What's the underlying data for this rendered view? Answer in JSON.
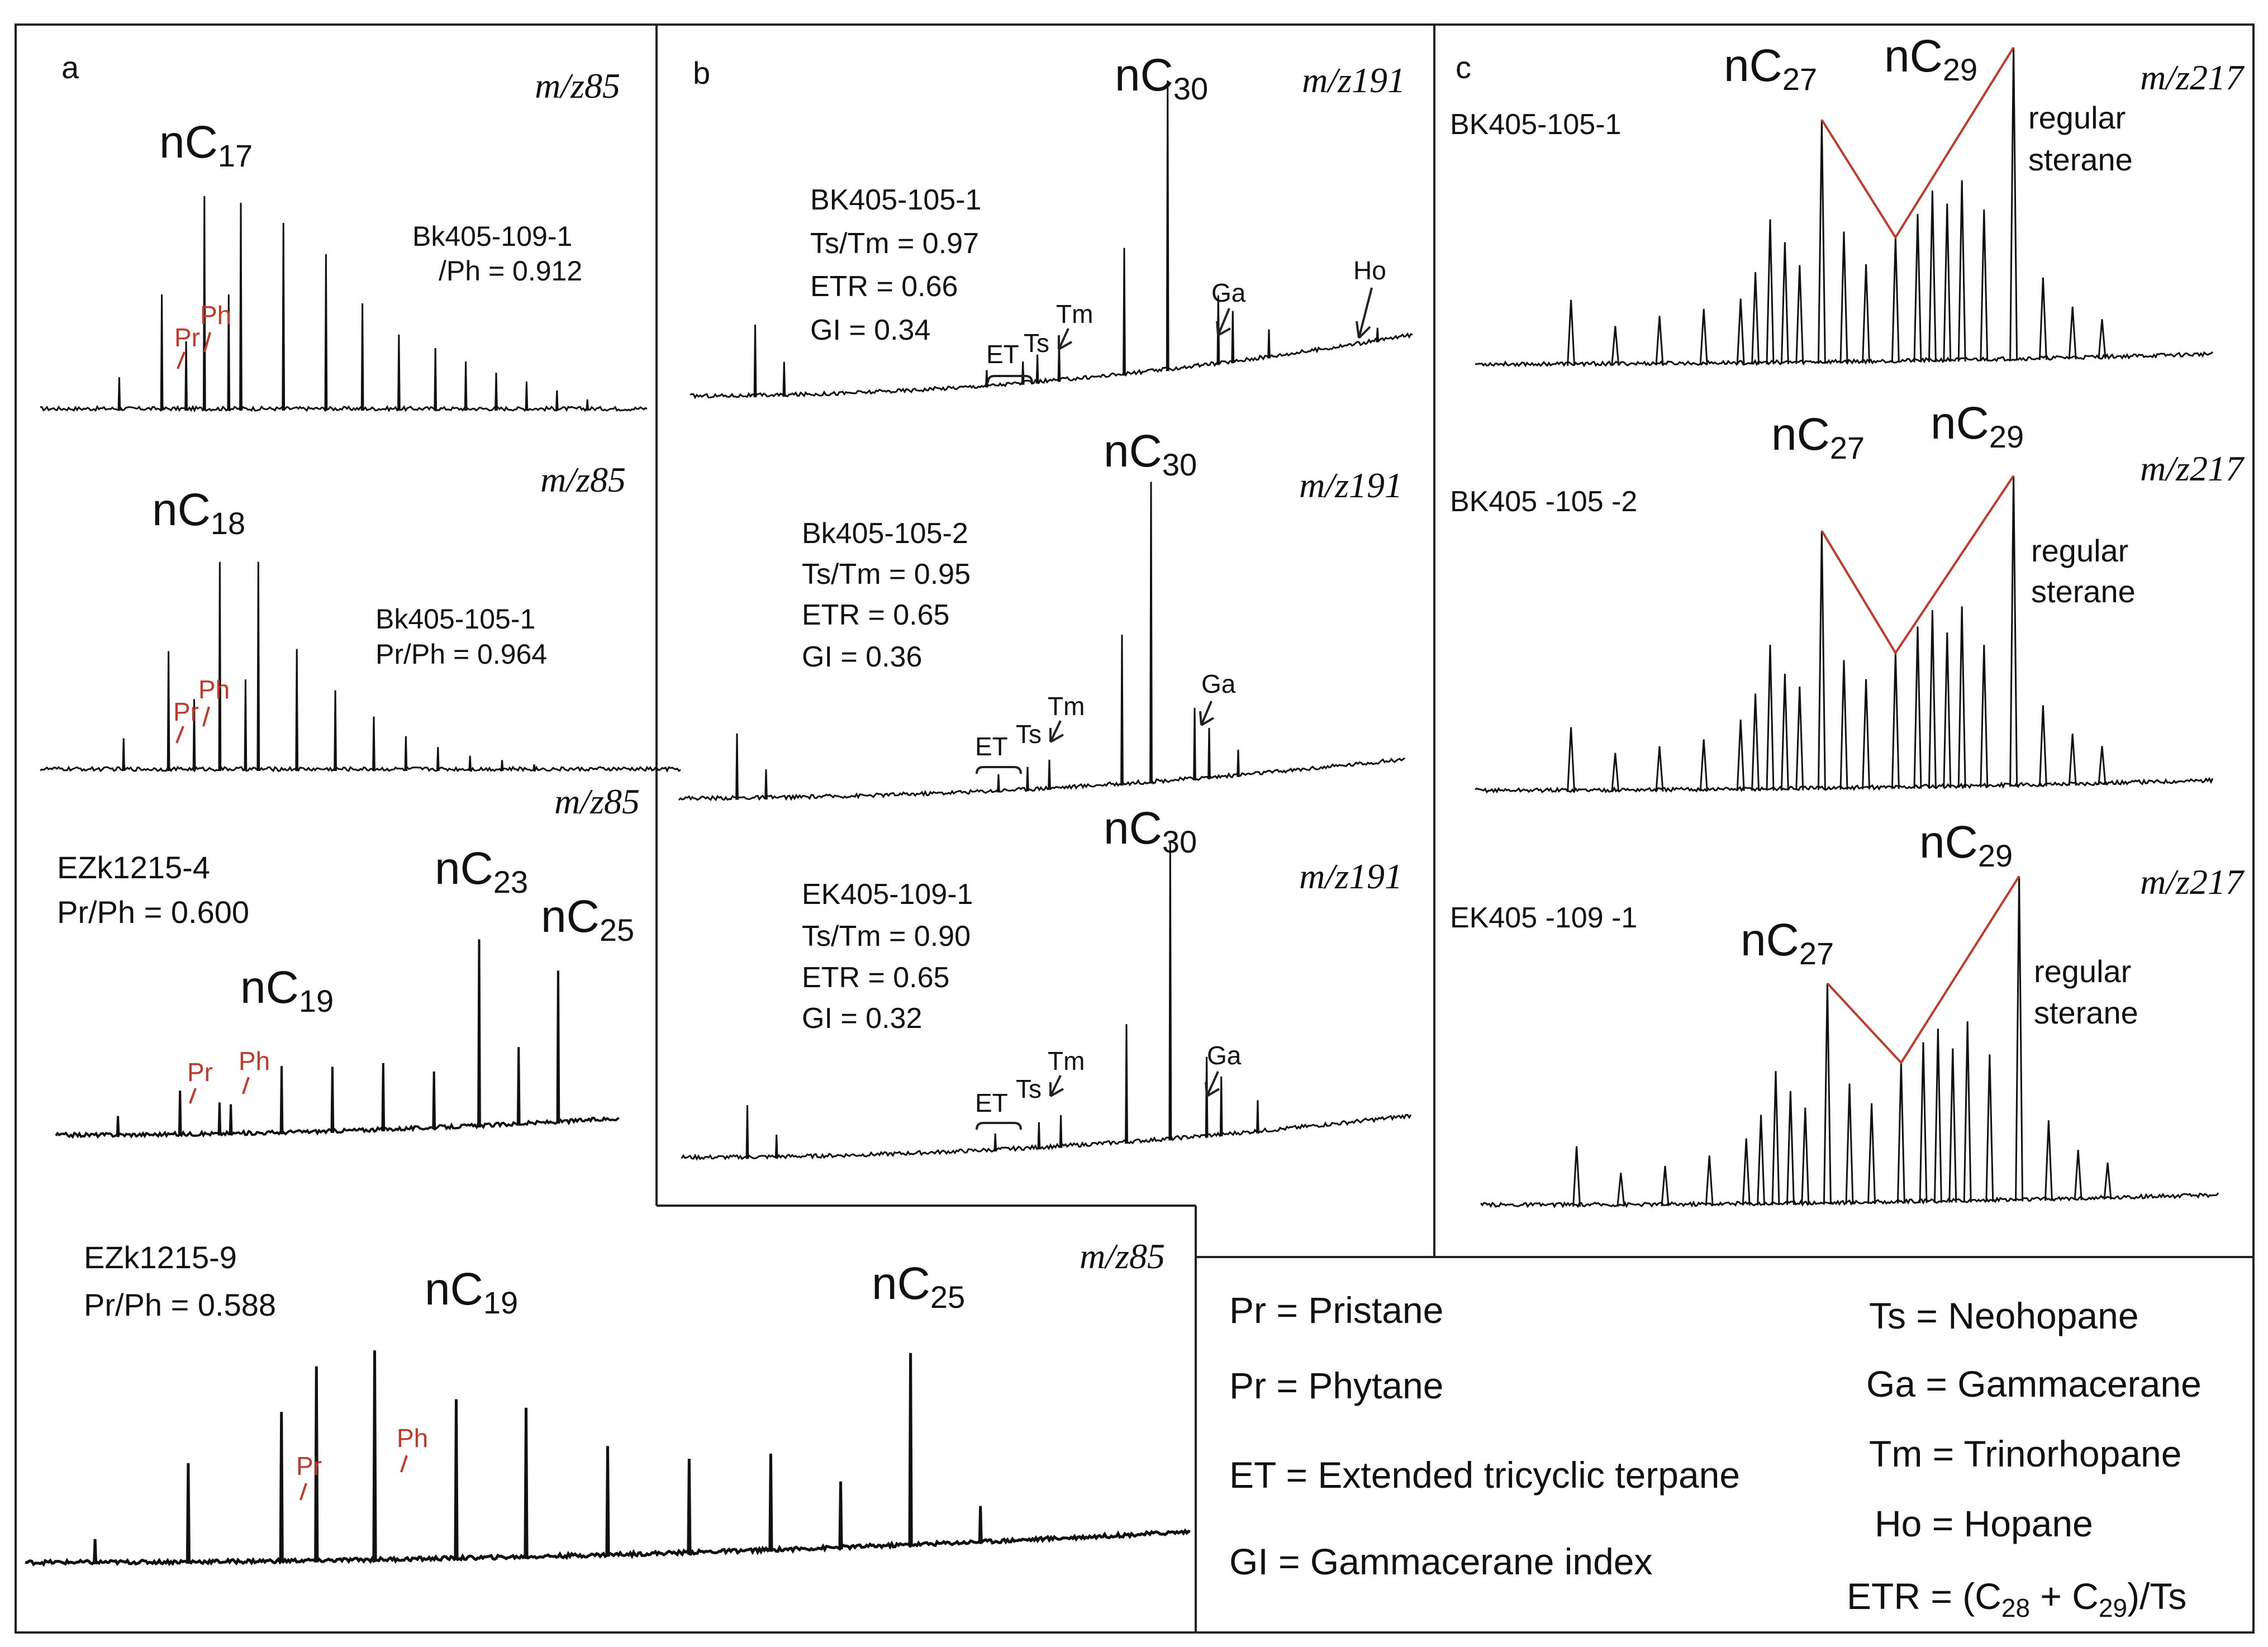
{
  "figure": {
    "legend": {
      "items": [
        "Pr = Pristane",
        "Pr = Phytane",
        "ET = Extended tricyclic terpane",
        "GI = Gammacerane index",
        "Ts = Neohopane",
        "Ga = Gammacerane",
        "Tm = Trinorhopane",
        "Ho = Hopane"
      ],
      "etr_formula": {
        "prefix": "ETR = (C",
        "s1": "28",
        "mid": " + C",
        "s2": "29",
        "suffix": ")/Ts"
      }
    }
  },
  "chart_data": [
    {
      "id": "a1",
      "panel_letter": "a",
      "type": "line",
      "mz": "m/z85",
      "sample": "Bk405-109-1",
      "stats": [
        "/Ph = 0.912"
      ],
      "peak_labels": [
        {
          "text": "nC",
          "sub": "17"
        }
      ],
      "compound_markers": [
        "Pr",
        "Ph"
      ],
      "peaks": [
        {
          "rt": 0.13,
          "h": 0.15
        },
        {
          "rt": 0.2,
          "h": 0.52
        },
        {
          "rt": 0.24,
          "h": 0.31
        },
        {
          "rt": 0.27,
          "h": 0.96
        },
        {
          "rt": 0.31,
          "h": 0.52
        },
        {
          "rt": 0.33,
          "h": 0.93
        },
        {
          "rt": 0.4,
          "h": 0.84
        },
        {
          "rt": 0.47,
          "h": 0.7
        },
        {
          "rt": 0.53,
          "h": 0.48
        },
        {
          "rt": 0.59,
          "h": 0.34
        },
        {
          "rt": 0.65,
          "h": 0.28
        },
        {
          "rt": 0.7,
          "h": 0.22
        },
        {
          "rt": 0.75,
          "h": 0.17
        },
        {
          "rt": 0.8,
          "h": 0.13
        },
        {
          "rt": 0.85,
          "h": 0.09
        },
        {
          "rt": 0.9,
          "h": 0.05
        }
      ]
    },
    {
      "id": "a2",
      "panel_letter": "",
      "type": "line",
      "mz": "m/z85",
      "sample": "Bk405-105-1",
      "stats": [
        "Pr/Ph = 0.964"
      ],
      "peak_labels": [
        {
          "text": "nC",
          "sub": "18"
        }
      ],
      "compound_markers": [
        "Pr",
        "Ph"
      ],
      "peaks": [
        {
          "rt": 0.13,
          "h": 0.15
        },
        {
          "rt": 0.2,
          "h": 0.55
        },
        {
          "rt": 0.24,
          "h": 0.33
        },
        {
          "rt": 0.28,
          "h": 0.96
        },
        {
          "rt": 0.32,
          "h": 0.42
        },
        {
          "rt": 0.34,
          "h": 0.96
        },
        {
          "rt": 0.4,
          "h": 0.56
        },
        {
          "rt": 0.46,
          "h": 0.37
        },
        {
          "rt": 0.52,
          "h": 0.25
        },
        {
          "rt": 0.57,
          "h": 0.16
        },
        {
          "rt": 0.62,
          "h": 0.11
        },
        {
          "rt": 0.67,
          "h": 0.07
        },
        {
          "rt": 0.72,
          "h": 0.05
        },
        {
          "rt": 0.77,
          "h": 0.03
        }
      ]
    },
    {
      "id": "a3",
      "panel_letter": "",
      "type": "line",
      "mz": "m/z85",
      "sample": "EZk1215-4",
      "stats": [
        "Pr/Ph = 0.600"
      ],
      "peak_labels": [
        {
          "text": "nC",
          "sub": "23"
        },
        {
          "text": "nC",
          "sub": "25"
        },
        {
          "text": "nC",
          "sub": "19"
        }
      ],
      "compound_markers": [
        "Pr",
        "Ph"
      ],
      "peaks": [
        {
          "rt": 0.11,
          "h": 0.1
        },
        {
          "rt": 0.22,
          "h": 0.22
        },
        {
          "rt": 0.29,
          "h": 0.16
        },
        {
          "rt": 0.31,
          "h": 0.15
        },
        {
          "rt": 0.4,
          "h": 0.33
        },
        {
          "rt": 0.49,
          "h": 0.32
        },
        {
          "rt": 0.58,
          "h": 0.33
        },
        {
          "rt": 0.67,
          "h": 0.28
        },
        {
          "rt": 0.75,
          "h": 0.91
        },
        {
          "rt": 0.82,
          "h": 0.38
        },
        {
          "rt": 0.89,
          "h": 0.74
        }
      ]
    },
    {
      "id": "a4",
      "panel_letter": "",
      "type": "line",
      "mz": "m/z85",
      "sample": "EZk1215-9",
      "stats": [
        "Pr/Ph = 0.588"
      ],
      "peak_labels": [
        {
          "text": "nC",
          "sub": "19"
        },
        {
          "text": "nC",
          "sub": "25"
        }
      ],
      "compound_markers": [
        "Pr",
        "Ph"
      ],
      "peaks": [
        {
          "rt": 0.06,
          "h": 0.1
        },
        {
          "rt": 0.14,
          "h": 0.4
        },
        {
          "rt": 0.22,
          "h": 0.6
        },
        {
          "rt": 0.25,
          "h": 0.78
        },
        {
          "rt": 0.3,
          "h": 0.84
        },
        {
          "rt": 0.37,
          "h": 0.64
        },
        {
          "rt": 0.43,
          "h": 0.6
        },
        {
          "rt": 0.5,
          "h": 0.44
        },
        {
          "rt": 0.57,
          "h": 0.38
        },
        {
          "rt": 0.64,
          "h": 0.39
        },
        {
          "rt": 0.7,
          "h": 0.27
        },
        {
          "rt": 0.76,
          "h": 0.77
        },
        {
          "rt": 0.82,
          "h": 0.15
        }
      ]
    },
    {
      "id": "b1",
      "panel_letter": "b",
      "type": "line",
      "mz": "m/z191",
      "sample": "BK405-105-1",
      "stats": [
        "Ts/Tm = 0.97",
        "ETR = 0.66",
        "GI = 0.34"
      ],
      "peak_labels": [
        {
          "text": "nC",
          "sub": "30"
        }
      ],
      "compound_markers": [
        "ET",
        "Ts",
        "Tm",
        "Ga",
        "Ho"
      ],
      "peaks": [
        {
          "rt": 0.09,
          "h": 0.25
        },
        {
          "rt": 0.13,
          "h": 0.12
        },
        {
          "rt": 0.41,
          "h": 0.06
        },
        {
          "rt": 0.46,
          "h": 0.08
        },
        {
          "rt": 0.48,
          "h": 0.1
        },
        {
          "rt": 0.51,
          "h": 0.13
        },
        {
          "rt": 0.6,
          "h": 0.44
        },
        {
          "rt": 0.66,
          "h": 1.0
        },
        {
          "rt": 0.73,
          "h": 0.24
        },
        {
          "rt": 0.75,
          "h": 0.18
        },
        {
          "rt": 0.8,
          "h": 0.1
        },
        {
          "rt": 0.95,
          "h": 0.05
        }
      ]
    },
    {
      "id": "b2",
      "panel_letter": "",
      "type": "line",
      "mz": "m/z191",
      "sample": "Bk405-105-2",
      "stats": [
        "Ts/Tm = 0.95",
        "ETR = 0.65",
        "GI = 0.36"
      ],
      "peak_labels": [
        {
          "text": "nC",
          "sub": "30"
        }
      ],
      "compound_markers": [
        "ET",
        "Ts",
        "Tm",
        "Ga"
      ],
      "peaks": [
        {
          "rt": 0.08,
          "h": 0.22
        },
        {
          "rt": 0.12,
          "h": 0.1
        },
        {
          "rt": 0.44,
          "h": 0.06
        },
        {
          "rt": 0.48,
          "h": 0.08
        },
        {
          "rt": 0.51,
          "h": 0.1
        },
        {
          "rt": 0.61,
          "h": 0.5
        },
        {
          "rt": 0.65,
          "h": 1.0
        },
        {
          "rt": 0.71,
          "h": 0.24
        },
        {
          "rt": 0.73,
          "h": 0.17
        },
        {
          "rt": 0.77,
          "h": 0.09
        }
      ]
    },
    {
      "id": "b3",
      "panel_letter": "",
      "type": "line",
      "mz": "m/z191",
      "sample": "EK405-109-1",
      "stats": [
        "Ts/Tm = 0.90",
        "ETR = 0.65",
        "GI = 0.32"
      ],
      "peak_labels": [
        {
          "text": "nC",
          "sub": "30"
        }
      ],
      "compound_markers": [
        "ET",
        "Ts",
        "Tm",
        "Ga"
      ],
      "peaks": [
        {
          "rt": 0.09,
          "h": 0.18
        },
        {
          "rt": 0.13,
          "h": 0.08
        },
        {
          "rt": 0.43,
          "h": 0.06
        },
        {
          "rt": 0.49,
          "h": 0.09
        },
        {
          "rt": 0.52,
          "h": 0.11
        },
        {
          "rt": 0.61,
          "h": 0.4
        },
        {
          "rt": 0.67,
          "h": 1.0
        },
        {
          "rt": 0.72,
          "h": 0.27
        },
        {
          "rt": 0.74,
          "h": 0.2
        },
        {
          "rt": 0.79,
          "h": 0.11
        }
      ]
    },
    {
      "id": "c1",
      "panel_letter": "c",
      "type": "line",
      "mz": "m/z217",
      "sample": "BK405-105-1",
      "stats": [],
      "peak_labels": [
        {
          "text": "nC",
          "sub": "27"
        },
        {
          "text": "nC",
          "sub": "29"
        }
      ],
      "annotation": [
        "regular",
        "sterane"
      ],
      "peaks": [
        {
          "rt": 0.13,
          "h": 0.2
        },
        {
          "rt": 0.19,
          "h": 0.12
        },
        {
          "rt": 0.25,
          "h": 0.15
        },
        {
          "rt": 0.31,
          "h": 0.17
        },
        {
          "rt": 0.36,
          "h": 0.2
        },
        {
          "rt": 0.38,
          "h": 0.28
        },
        {
          "rt": 0.4,
          "h": 0.44
        },
        {
          "rt": 0.42,
          "h": 0.37
        },
        {
          "rt": 0.44,
          "h": 0.3
        },
        {
          "rt": 0.47,
          "h": 0.74
        },
        {
          "rt": 0.5,
          "h": 0.4
        },
        {
          "rt": 0.53,
          "h": 0.3
        },
        {
          "rt": 0.57,
          "h": 0.38
        },
        {
          "rt": 0.6,
          "h": 0.45
        },
        {
          "rt": 0.62,
          "h": 0.52
        },
        {
          "rt": 0.64,
          "h": 0.48
        },
        {
          "rt": 0.66,
          "h": 0.55
        },
        {
          "rt": 0.69,
          "h": 0.46
        },
        {
          "rt": 0.73,
          "h": 0.95
        },
        {
          "rt": 0.77,
          "h": 0.25
        },
        {
          "rt": 0.81,
          "h": 0.16
        },
        {
          "rt": 0.85,
          "h": 0.12
        }
      ]
    },
    {
      "id": "c2",
      "panel_letter": "",
      "type": "line",
      "mz": "m/z217",
      "sample": "BK405 -105 -2",
      "stats": [],
      "peak_labels": [
        {
          "text": "nC",
          "sub": "27"
        },
        {
          "text": "nC",
          "sub": "29"
        }
      ],
      "annotation": [
        "regular",
        "sterane"
      ],
      "peaks": [
        {
          "rt": 0.13,
          "h": 0.2
        },
        {
          "rt": 0.19,
          "h": 0.12
        },
        {
          "rt": 0.25,
          "h": 0.14
        },
        {
          "rt": 0.31,
          "h": 0.16
        },
        {
          "rt": 0.36,
          "h": 0.22
        },
        {
          "rt": 0.38,
          "h": 0.3
        },
        {
          "rt": 0.4,
          "h": 0.45
        },
        {
          "rt": 0.42,
          "h": 0.36
        },
        {
          "rt": 0.44,
          "h": 0.32
        },
        {
          "rt": 0.47,
          "h": 0.8
        },
        {
          "rt": 0.5,
          "h": 0.4
        },
        {
          "rt": 0.53,
          "h": 0.34
        },
        {
          "rt": 0.57,
          "h": 0.42
        },
        {
          "rt": 0.6,
          "h": 0.5
        },
        {
          "rt": 0.62,
          "h": 0.55
        },
        {
          "rt": 0.64,
          "h": 0.48
        },
        {
          "rt": 0.66,
          "h": 0.56
        },
        {
          "rt": 0.69,
          "h": 0.44
        },
        {
          "rt": 0.73,
          "h": 0.96
        },
        {
          "rt": 0.77,
          "h": 0.25
        },
        {
          "rt": 0.81,
          "h": 0.16
        },
        {
          "rt": 0.85,
          "h": 0.12
        }
      ]
    },
    {
      "id": "c3",
      "panel_letter": "",
      "type": "line",
      "mz": "m/z217",
      "sample": "EK405 -109 -1",
      "stats": [],
      "peak_labels": [
        {
          "text": "nC",
          "sub": "29"
        },
        {
          "text": "nC",
          "sub": "27"
        }
      ],
      "annotation": [
        "regular",
        "sterane"
      ],
      "peaks": [
        {
          "rt": 0.13,
          "h": 0.18
        },
        {
          "rt": 0.19,
          "h": 0.1
        },
        {
          "rt": 0.25,
          "h": 0.12
        },
        {
          "rt": 0.31,
          "h": 0.15
        },
        {
          "rt": 0.36,
          "h": 0.2
        },
        {
          "rt": 0.38,
          "h": 0.27
        },
        {
          "rt": 0.4,
          "h": 0.4
        },
        {
          "rt": 0.42,
          "h": 0.34
        },
        {
          "rt": 0.44,
          "h": 0.29
        },
        {
          "rt": 0.47,
          "h": 0.66
        },
        {
          "rt": 0.5,
          "h": 0.36
        },
        {
          "rt": 0.53,
          "h": 0.3
        },
        {
          "rt": 0.57,
          "h": 0.42
        },
        {
          "rt": 0.6,
          "h": 0.48
        },
        {
          "rt": 0.62,
          "h": 0.52
        },
        {
          "rt": 0.64,
          "h": 0.46
        },
        {
          "rt": 0.66,
          "h": 0.54
        },
        {
          "rt": 0.69,
          "h": 0.44
        },
        {
          "rt": 0.73,
          "h": 0.97
        },
        {
          "rt": 0.77,
          "h": 0.24
        },
        {
          "rt": 0.81,
          "h": 0.15
        },
        {
          "rt": 0.85,
          "h": 0.11
        }
      ]
    }
  ]
}
